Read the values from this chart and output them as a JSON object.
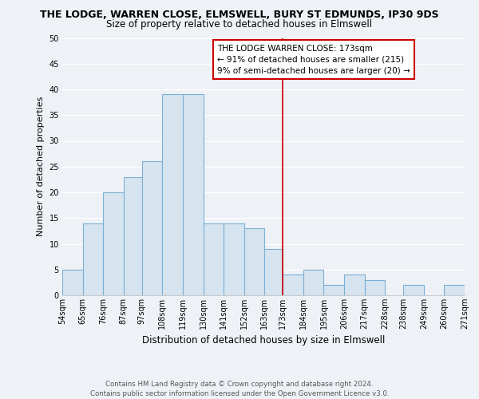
{
  "title": "THE LODGE, WARREN CLOSE, ELMSWELL, BURY ST EDMUNDS, IP30 9DS",
  "subtitle": "Size of property relative to detached houses in Elmswell",
  "xlabel": "Distribution of detached houses by size in Elmswell",
  "ylabel": "Number of detached properties",
  "bar_color": "#d6e4f0",
  "bar_edge_color": "#7bafd4",
  "bins": [
    54,
    65,
    76,
    87,
    97,
    108,
    119,
    130,
    141,
    152,
    163,
    173,
    184,
    195,
    206,
    217,
    228,
    238,
    249,
    260,
    271
  ],
  "bin_labels": [
    "54sqm",
    "65sqm",
    "76sqm",
    "87sqm",
    "97sqm",
    "108sqm",
    "119sqm",
    "130sqm",
    "141sqm",
    "152sqm",
    "163sqm",
    "173sqm",
    "184sqm",
    "195sqm",
    "206sqm",
    "217sqm",
    "228sqm",
    "238sqm",
    "249sqm",
    "260sqm",
    "271sqm"
  ],
  "values": [
    5,
    14,
    20,
    23,
    26,
    39,
    39,
    14,
    14,
    13,
    9,
    4,
    5,
    2,
    4,
    3,
    0,
    2,
    0,
    2
  ],
  "vline_x": 173,
  "vline_color": "#cc0000",
  "legend_title": "THE LODGE WARREN CLOSE: 173sqm",
  "legend_line1": "← 91% of detached houses are smaller (215)",
  "legend_line2": "9% of semi-detached houses are larger (20) →",
  "legend_box_color": "white",
  "legend_box_edge_color": "#cc0000",
  "ylim": [
    0,
    50
  ],
  "yticks": [
    0,
    5,
    10,
    15,
    20,
    25,
    30,
    35,
    40,
    45,
    50
  ],
  "footer_line1": "Contains HM Land Registry data © Crown copyright and database right 2024.",
  "footer_line2": "Contains public sector information licensed under the Open Government Licence v3.0.",
  "background_color": "#eef2f7",
  "grid_color": "#ffffff",
  "title_fontsize": 9.0,
  "subtitle_fontsize": 8.5,
  "ylabel_fontsize": 8.0,
  "xlabel_fontsize": 8.5,
  "tick_fontsize": 7.0,
  "legend_fontsize": 7.5,
  "footer_fontsize": 6.2
}
